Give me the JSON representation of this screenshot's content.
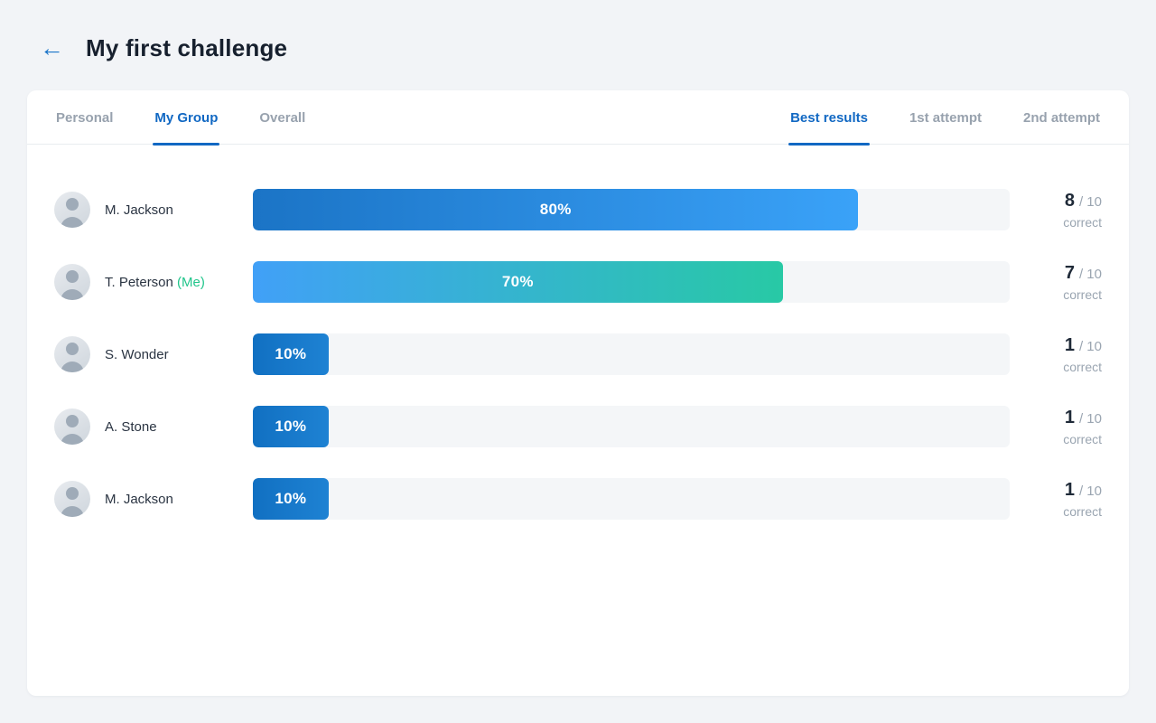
{
  "header": {
    "back_icon": "←",
    "title": "My first challenge"
  },
  "tabs": {
    "left": [
      {
        "label": "Personal",
        "active": false
      },
      {
        "label": "My Group",
        "active": true
      },
      {
        "label": "Overall",
        "active": false
      }
    ],
    "right": [
      {
        "label": "Best results",
        "active": true
      },
      {
        "label": "1st attempt",
        "active": false
      },
      {
        "label": "2nd attempt",
        "active": false
      }
    ]
  },
  "leaderboard": {
    "rows": [
      {
        "name": "M. Jackson",
        "me_label": "",
        "percent": 80,
        "percent_label": "80%",
        "score": "8",
        "total_label": "/ 10",
        "correct_label": "correct",
        "bar_from": "#1b74c6",
        "bar_to": "#3aa2f8"
      },
      {
        "name": "T. Peterson",
        "me_label": "(Me)",
        "percent": 70,
        "percent_label": "70%",
        "score": "7",
        "total_label": "/ 10",
        "correct_label": "correct",
        "bar_from": "#41a0f7",
        "bar_to": "#28c9a5"
      },
      {
        "name": "S. Wonder",
        "me_label": "",
        "percent": 10,
        "percent_label": "10%",
        "score": "1",
        "total_label": "/ 10",
        "correct_label": "correct",
        "bar_from": "#1170c2",
        "bar_to": "#1e82d3"
      },
      {
        "name": "A. Stone",
        "me_label": "",
        "percent": 10,
        "percent_label": "10%",
        "score": "1",
        "total_label": "/ 10",
        "correct_label": "correct",
        "bar_from": "#1170c2",
        "bar_to": "#1e82d3"
      },
      {
        "name": "M. Jackson",
        "me_label": "",
        "percent": 10,
        "percent_label": "10%",
        "score": "1",
        "total_label": "/ 10",
        "correct_label": "correct",
        "bar_from": "#1170c2",
        "bar_to": "#1e82d3"
      }
    ]
  },
  "colors": {
    "accent_blue": "#1168c3",
    "me_green": "#21c58b",
    "track_gray": "#f4f6f8",
    "page_background": "#f2f4f7"
  }
}
